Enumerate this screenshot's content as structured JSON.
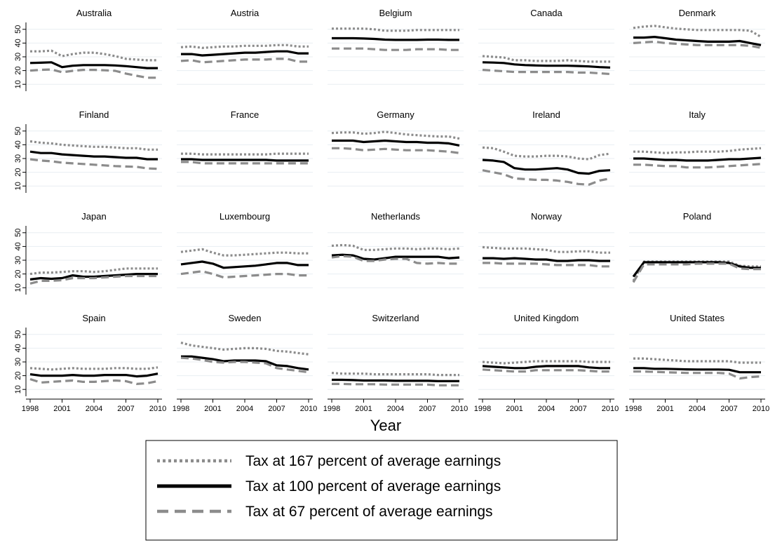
{
  "chart_data": {
    "type": "line",
    "xlabel": "Year",
    "x": [
      1998,
      1999,
      2000,
      2001,
      2002,
      2003,
      2004,
      2005,
      2006,
      2007,
      2008,
      2009,
      2010
    ],
    "x_ticks": [
      1998,
      2001,
      2004,
      2007,
      2010
    ],
    "y_ticks": [
      10,
      20,
      30,
      40,
      50
    ],
    "ylim": [
      5,
      55
    ],
    "grid": true,
    "series_meta": [
      {
        "key": "high",
        "name": "Tax at 167 percent of average earnings",
        "color": "#8c8c8c",
        "style": "dotted"
      },
      {
        "key": "mid",
        "name": "Tax at 100 percent of average earnings",
        "color": "#000000",
        "style": "solid"
      },
      {
        "key": "low",
        "name": "Tax at 67 percent of average earnings",
        "color": "#8c8c8c",
        "style": "dashed"
      }
    ],
    "panels": [
      {
        "title": "Australia",
        "high": [
          34,
          34,
          34.5,
          30.5,
          32,
          33,
          33,
          32,
          30.5,
          28.5,
          28,
          27.5,
          27.5
        ],
        "mid": [
          25.5,
          25.7,
          26,
          22.5,
          23.5,
          24,
          24,
          24,
          23.7,
          23.2,
          22.5,
          21.8,
          21.8
        ],
        "low": [
          20,
          20.5,
          20.8,
          18.8,
          19.8,
          20.5,
          20.5,
          20.2,
          19.8,
          17.8,
          16.2,
          14.8,
          14.8
        ]
      },
      {
        "title": "Austria",
        "high": [
          37,
          37.5,
          36.5,
          37,
          37.5,
          37.5,
          38,
          38,
          38,
          38.5,
          38.5,
          37.5,
          37.5
        ],
        "mid": [
          32,
          32,
          31,
          31.5,
          32,
          32.5,
          33,
          33,
          33.5,
          34,
          34,
          32.5,
          32.5
        ],
        "low": [
          27,
          27.5,
          26,
          26.5,
          27,
          27.5,
          28,
          28,
          28,
          28.5,
          28.5,
          26.5,
          26.5
        ]
      },
      {
        "title": "Belgium",
        "high": [
          50.5,
          50.5,
          50.5,
          50.5,
          50,
          49,
          49,
          49,
          49.5,
          49.5,
          49.5,
          49.5,
          49.5
        ],
        "mid": [
          43.5,
          43.5,
          43.5,
          43.3,
          43,
          42.5,
          42.3,
          42.3,
          42.3,
          42.5,
          42.5,
          42.3,
          42.3
        ],
        "low": [
          36,
          36,
          36,
          36,
          35.5,
          35,
          35,
          35,
          35.5,
          35.5,
          35.5,
          35,
          35
        ]
      },
      {
        "title": "Canada",
        "high": [
          30.5,
          30,
          29.5,
          27.5,
          27.5,
          27,
          27,
          27,
          27.5,
          27,
          26.5,
          26.5,
          26.5
        ],
        "mid": [
          26,
          25.8,
          25.5,
          24.5,
          24,
          23.7,
          23.5,
          23.5,
          23.5,
          23.3,
          23,
          22.5,
          22.2
        ],
        "low": [
          20.5,
          20,
          19.5,
          19,
          19,
          19,
          19,
          19,
          19,
          18.5,
          18.5,
          18,
          17.5
        ]
      },
      {
        "title": "Denmark",
        "high": [
          51,
          52,
          52.5,
          51.5,
          50.5,
          50,
          49.5,
          49.5,
          49.5,
          49.5,
          49.5,
          49,
          44.5
        ],
        "mid": [
          44,
          44,
          44.5,
          43.5,
          42.5,
          42,
          41.5,
          41,
          41,
          41,
          41.5,
          40,
          38.5
        ],
        "low": [
          40,
          40.5,
          41,
          40,
          39.5,
          39,
          38.5,
          38.5,
          38.5,
          38.5,
          38.5,
          38,
          36.5
        ]
      },
      {
        "title": "Finland",
        "high": [
          42.5,
          41.5,
          41,
          40,
          39.5,
          39,
          38.5,
          38.5,
          38,
          37.5,
          37.5,
          36.5,
          36.5
        ],
        "mid": [
          35,
          34,
          34,
          33,
          32.5,
          32,
          31.5,
          31.5,
          31,
          30.5,
          30.5,
          29.5,
          29.5
        ],
        "low": [
          29.5,
          28.5,
          28,
          27,
          26.5,
          26,
          25.5,
          25,
          24.5,
          24.2,
          24,
          22.8,
          22.5
        ]
      },
      {
        "title": "France",
        "high": [
          33.5,
          33.5,
          33,
          33,
          33,
          33,
          33,
          33,
          33,
          33.5,
          33.5,
          33.5,
          33.5
        ],
        "mid": [
          29.5,
          29.5,
          29,
          29,
          29,
          29,
          29,
          29,
          29,
          28.5,
          28.5,
          28.5,
          28.5
        ],
        "low": [
          27.5,
          27.5,
          26.5,
          26.5,
          26.5,
          26.5,
          26.5,
          26.5,
          26.5,
          26.5,
          26.5,
          26.5,
          26.5
        ]
      },
      {
        "title": "Germany",
        "high": [
          48.5,
          49,
          49,
          48,
          48.5,
          49.5,
          48.5,
          47.5,
          47,
          46.5,
          46,
          46,
          44.5
        ],
        "mid": [
          43,
          43,
          43,
          42,
          42.5,
          43,
          42.5,
          42,
          42,
          41.5,
          41.5,
          41,
          39.5
        ],
        "low": [
          37.5,
          37.5,
          37,
          36,
          36.5,
          37,
          36.5,
          36,
          36,
          36,
          35.5,
          35,
          34
        ]
      },
      {
        "title": "Ireland",
        "high": [
          38,
          37.5,
          35,
          32,
          31.5,
          31.5,
          32,
          32,
          31.5,
          30,
          29.5,
          32.5,
          33.5
        ],
        "mid": [
          29,
          28.5,
          27.5,
          23,
          22,
          22,
          22.5,
          23,
          22,
          19.5,
          19,
          21,
          21.5
        ],
        "low": [
          21.5,
          20,
          18.5,
          15.5,
          15,
          14.5,
          14.5,
          14,
          13,
          11.5,
          11,
          14,
          15.5
        ]
      },
      {
        "title": "Italy",
        "high": [
          35,
          35,
          34.5,
          34,
          34.5,
          34.5,
          35,
          35,
          35,
          35.5,
          36.5,
          37,
          37.5
        ],
        "mid": [
          30,
          30,
          29.5,
          29,
          29,
          28.5,
          28.5,
          28.5,
          29,
          29.5,
          29.5,
          30,
          30.5
        ],
        "low": [
          25.5,
          25.5,
          25,
          24.5,
          24.5,
          23.5,
          23.5,
          23.5,
          24,
          24.5,
          25,
          25.5,
          26
        ]
      },
      {
        "title": "Japan",
        "high": [
          20,
          21,
          21,
          21.5,
          22,
          22,
          21.5,
          22,
          23,
          24,
          24,
          24,
          24
        ],
        "mid": [
          16,
          17,
          16.5,
          17,
          19,
          18,
          18,
          18.5,
          19,
          19.5,
          20,
          20,
          20
        ],
        "low": [
          13,
          15,
          15,
          15.5,
          17,
          17,
          17,
          17.5,
          18,
          18.5,
          18.5,
          18.5,
          18.5
        ]
      },
      {
        "title": "Luxembourg",
        "high": [
          36,
          37,
          38,
          35.5,
          33.5,
          33.5,
          34,
          34.5,
          35,
          35.5,
          35.5,
          35,
          35
        ],
        "mid": [
          27,
          28,
          29,
          27.5,
          24.5,
          25,
          25.5,
          26,
          27,
          28,
          28,
          26.5,
          26.5
        ],
        "low": [
          20,
          21,
          22,
          20,
          17.5,
          18,
          18.5,
          19,
          19.5,
          20,
          20,
          19,
          19
        ]
      },
      {
        "title": "Netherlands",
        "high": [
          40.5,
          41,
          40.5,
          37.5,
          37.5,
          38,
          38.5,
          38.5,
          38,
          38.5,
          38.5,
          38,
          38.5
        ],
        "mid": [
          33.5,
          34,
          33.5,
          31,
          30.5,
          31.5,
          32.5,
          32.5,
          32.5,
          32.5,
          32.5,
          31.5,
          32
        ],
        "low": [
          32,
          33,
          32.5,
          29.5,
          29.5,
          30.5,
          31,
          31,
          28,
          27.5,
          28,
          27.5,
          27.5
        ]
      },
      {
        "title": "Norway",
        "high": [
          39.5,
          39,
          38.5,
          38.5,
          38.5,
          38,
          37.5,
          36,
          36,
          36.5,
          36.5,
          35.5,
          35.5
        ],
        "mid": [
          31.5,
          31.5,
          31,
          31.5,
          31,
          30.5,
          30.5,
          29.5,
          29.5,
          30,
          30,
          29.5,
          29.5
        ],
        "low": [
          28,
          28,
          27.5,
          27.5,
          27.5,
          27.5,
          27,
          26.5,
          26.5,
          26.5,
          26.5,
          25.5,
          25.5
        ]
      },
      {
        "title": "Poland",
        "high": [
          15,
          29,
          29,
          29,
          29,
          29,
          29,
          29,
          29,
          29,
          26,
          25.5,
          25.5
        ],
        "mid": [
          18,
          28.5,
          28.5,
          28.5,
          28.5,
          28.5,
          28.5,
          28.5,
          28.5,
          28,
          25.5,
          24.5,
          24.5
        ],
        "low": [
          14,
          27,
          27,
          27,
          27,
          27,
          27.5,
          27.5,
          27.5,
          27.5,
          24,
          23.5,
          23.5
        ]
      },
      {
        "title": "Spain",
        "high": [
          25.5,
          25,
          24.5,
          25,
          25.5,
          25,
          25,
          25,
          25.5,
          25.5,
          25,
          25,
          26
        ],
        "mid": [
          21,
          20,
          20,
          20,
          20.5,
          20,
          20,
          20.5,
          20.5,
          20.5,
          19.5,
          20,
          21.5
        ],
        "low": [
          17.5,
          15,
          15.5,
          16,
          16.5,
          15.5,
          15.5,
          16,
          16.5,
          16,
          14,
          14.5,
          16
        ]
      },
      {
        "title": "Sweden",
        "high": [
          44,
          42,
          41,
          40,
          39,
          39.5,
          40,
          40,
          39.5,
          38,
          37.5,
          36.5,
          35.5
        ],
        "mid": [
          34,
          34,
          33,
          32,
          30.5,
          31,
          31,
          31,
          30.5,
          27.5,
          27,
          25.5,
          24.5
        ],
        "low": [
          33,
          32.5,
          31.5,
          30,
          29.5,
          30,
          30,
          29.5,
          29,
          25.5,
          24.5,
          23.5,
          22.5
        ]
      },
      {
        "title": "Switzerland",
        "high": [
          22,
          21.5,
          21.5,
          21.5,
          21,
          21,
          21,
          21,
          21,
          21,
          20.5,
          20.5,
          20.5
        ],
        "mid": [
          17,
          17,
          16.8,
          16.5,
          16.5,
          16.5,
          16.3,
          16.3,
          16.3,
          16.3,
          16,
          16,
          16
        ],
        "low": [
          14,
          14,
          13.8,
          13.8,
          13.8,
          13.5,
          13.5,
          13.5,
          13.5,
          13.5,
          13,
          13,
          13
        ]
      },
      {
        "title": "United Kingdom",
        "high": [
          30,
          29.5,
          29,
          29.5,
          30,
          30.5,
          30.5,
          30.5,
          30.5,
          30.5,
          30,
          30,
          30
        ],
        "mid": [
          27,
          26.5,
          26,
          25.5,
          25.5,
          26.5,
          27,
          27,
          27,
          27,
          26,
          25.5,
          25.5
        ],
        "low": [
          24.5,
          24,
          23.5,
          23,
          23,
          24,
          24,
          24,
          24,
          24,
          23.5,
          23,
          23
        ]
      },
      {
        "title": "United States",
        "high": [
          32.5,
          32.5,
          32,
          31.5,
          31,
          30.5,
          30.5,
          30.5,
          30.5,
          30.5,
          29.5,
          29.5,
          29.5
        ],
        "mid": [
          25.5,
          25.5,
          25,
          25,
          24.8,
          24.6,
          24.5,
          24.5,
          24.5,
          24.3,
          22.5,
          22.5,
          22.5
        ],
        "low": [
          23,
          23,
          22.8,
          22.5,
          22.3,
          22,
          22,
          22,
          22,
          21.5,
          18,
          19,
          19.5
        ]
      }
    ]
  }
}
